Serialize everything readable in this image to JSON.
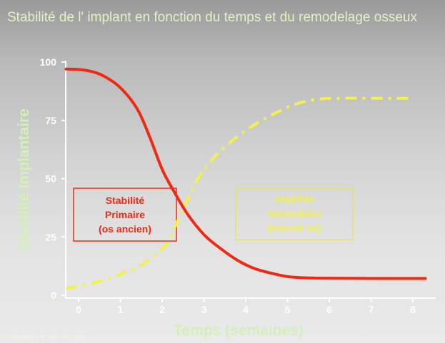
{
  "title": "Stabilité de l' implant en fonction du temps et du remodelage osseux",
  "credit": "S. Raghavendra, M. Wood, T.D. Taylor",
  "chart_data": {
    "type": "line",
    "xlabel": "Temps (semaines)",
    "ylabel": "Stabilité Implantaire",
    "xlim": [
      -0.3,
      8.3
    ],
    "ylim": [
      0,
      100
    ],
    "x_ticks": [
      0,
      1,
      2,
      3,
      4,
      5,
      6,
      7,
      8
    ],
    "y_ticks": [
      0,
      25,
      50,
      75,
      100
    ],
    "grid": false,
    "series": [
      {
        "name": "Stabilité Primaire (os ancien)",
        "color": "#ee2a14",
        "style": "solid",
        "x": [
          -0.3,
          0,
          0.3,
          0.6,
          1.0,
          1.4,
          1.7,
          2.0,
          2.3,
          2.6,
          3.0,
          3.4,
          3.8,
          4.2,
          4.6,
          5.0,
          5.4,
          6.0,
          7.0,
          8.3
        ],
        "y": [
          97,
          96.8,
          96,
          94,
          89,
          80,
          68,
          54,
          44,
          35,
          26,
          20,
          15,
          11.5,
          9.5,
          8,
          7.5,
          7.3,
          7.2,
          7.2
        ]
      },
      {
        "name": "Stabilité Secondaire (nouvel os)",
        "color": "#f2f24a",
        "style": "dashdot",
        "x": [
          -0.3,
          0,
          0.5,
          1.0,
          1.5,
          1.8,
          2.1,
          2.3,
          2.5,
          2.7,
          3.0,
          3.4,
          3.8,
          4.2,
          4.7,
          5.2,
          5.7,
          6.2,
          7.0,
          8.0
        ],
        "y": [
          3,
          4,
          6,
          9,
          13,
          17,
          22,
          29,
          37,
          45,
          54,
          62,
          68,
          73,
          78,
          82,
          84,
          84.5,
          84.5,
          84.5
        ]
      }
    ],
    "annotations": [
      {
        "lines": [
          "Stabilité",
          "Primaire",
          "(os ancien)"
        ],
        "color": "#ee2a14"
      },
      {
        "lines": [
          "Stabilité",
          "Secondaire",
          "(nouvel os)"
        ],
        "color": "#f2f24a"
      }
    ]
  }
}
